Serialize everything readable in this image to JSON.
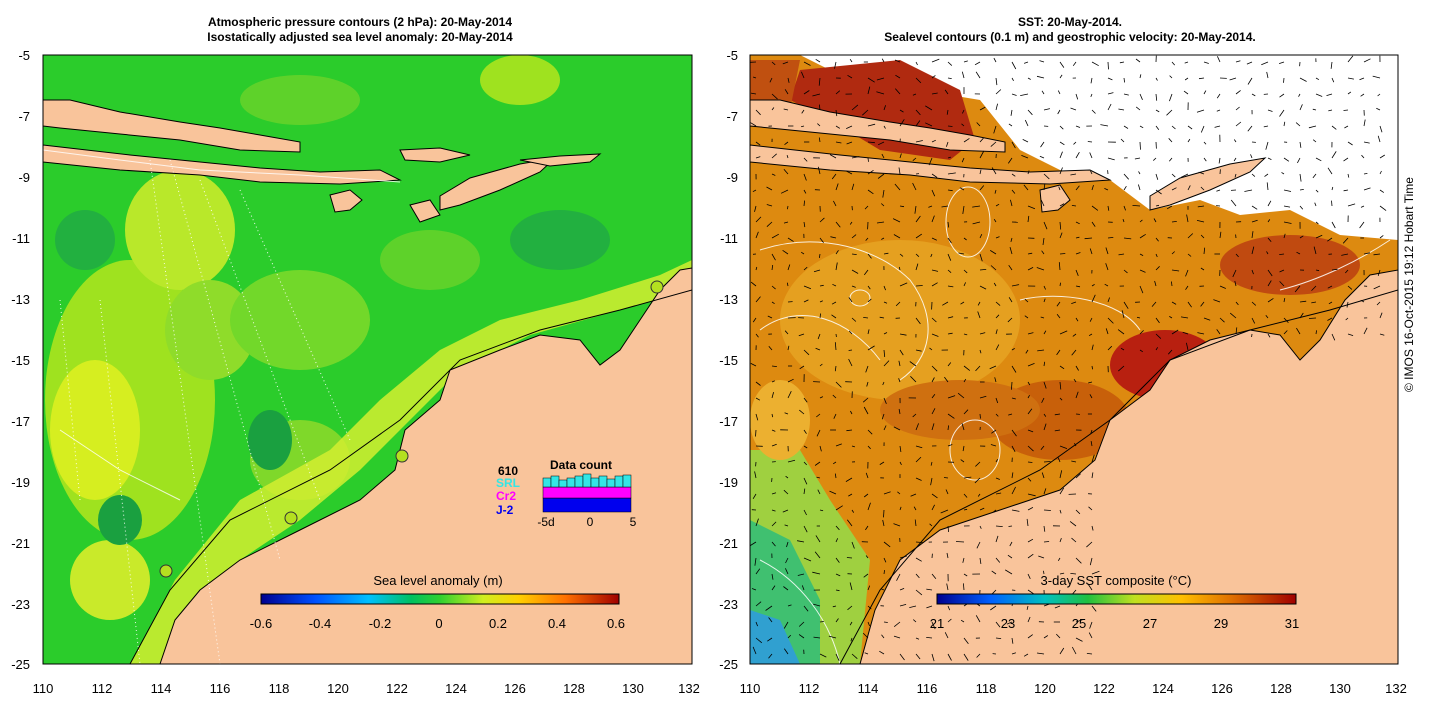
{
  "left_panel": {
    "title_line1": "Atmospheric pressure contours (2 hPa): 20-May-2014",
    "title_line2": "Isostatically adjusted sea level anomaly: 20-May-2014",
    "colorbar": {
      "label": "Sea level anomaly (m)",
      "ticks": [
        "-0.6",
        "-0.4",
        "-0.2",
        "0",
        "0.2",
        "0.4",
        "0.6"
      ],
      "range": [
        -0.6,
        0.6
      ]
    },
    "data_count": {
      "title": "Data count",
      "satellites": [
        {
          "name": "610",
          "color": "#000000"
        },
        {
          "name": "SRL",
          "color": "#33e6e6"
        },
        {
          "name": "Cr2",
          "color": "#ff00ff"
        },
        {
          "name": "J-2",
          "color": "#0000ee"
        }
      ],
      "axis_labels": [
        "-5d",
        "0",
        "5"
      ]
    }
  },
  "right_panel": {
    "title_line1": "SST: 20-May-2014.",
    "title_line2": "Sealevel contours (0.1 m) and geostrophic velocity: 20-May-2014.",
    "colorbar": {
      "label": "3-day SST composite (°C)",
      "ticks": [
        "21",
        "23",
        "25",
        "27",
        "29",
        "31"
      ],
      "range": [
        21,
        31
      ]
    }
  },
  "axes": {
    "lon_ticks": [
      "110",
      "112",
      "114",
      "116",
      "118",
      "120",
      "122",
      "124",
      "126",
      "128",
      "130",
      "132"
    ],
    "lat_ticks": [
      "-5",
      "-7",
      "-9",
      "-11",
      "-13",
      "-15",
      "-17",
      "-19",
      "-21",
      "-23",
      "-25"
    ]
  },
  "credit": "© IMOS 16-Oct-2015 19:12 Hobart Time",
  "colors": {
    "land": "#f9c49b",
    "sla_ocean": "#22cc22",
    "sst_ocean": "#dd8800"
  }
}
